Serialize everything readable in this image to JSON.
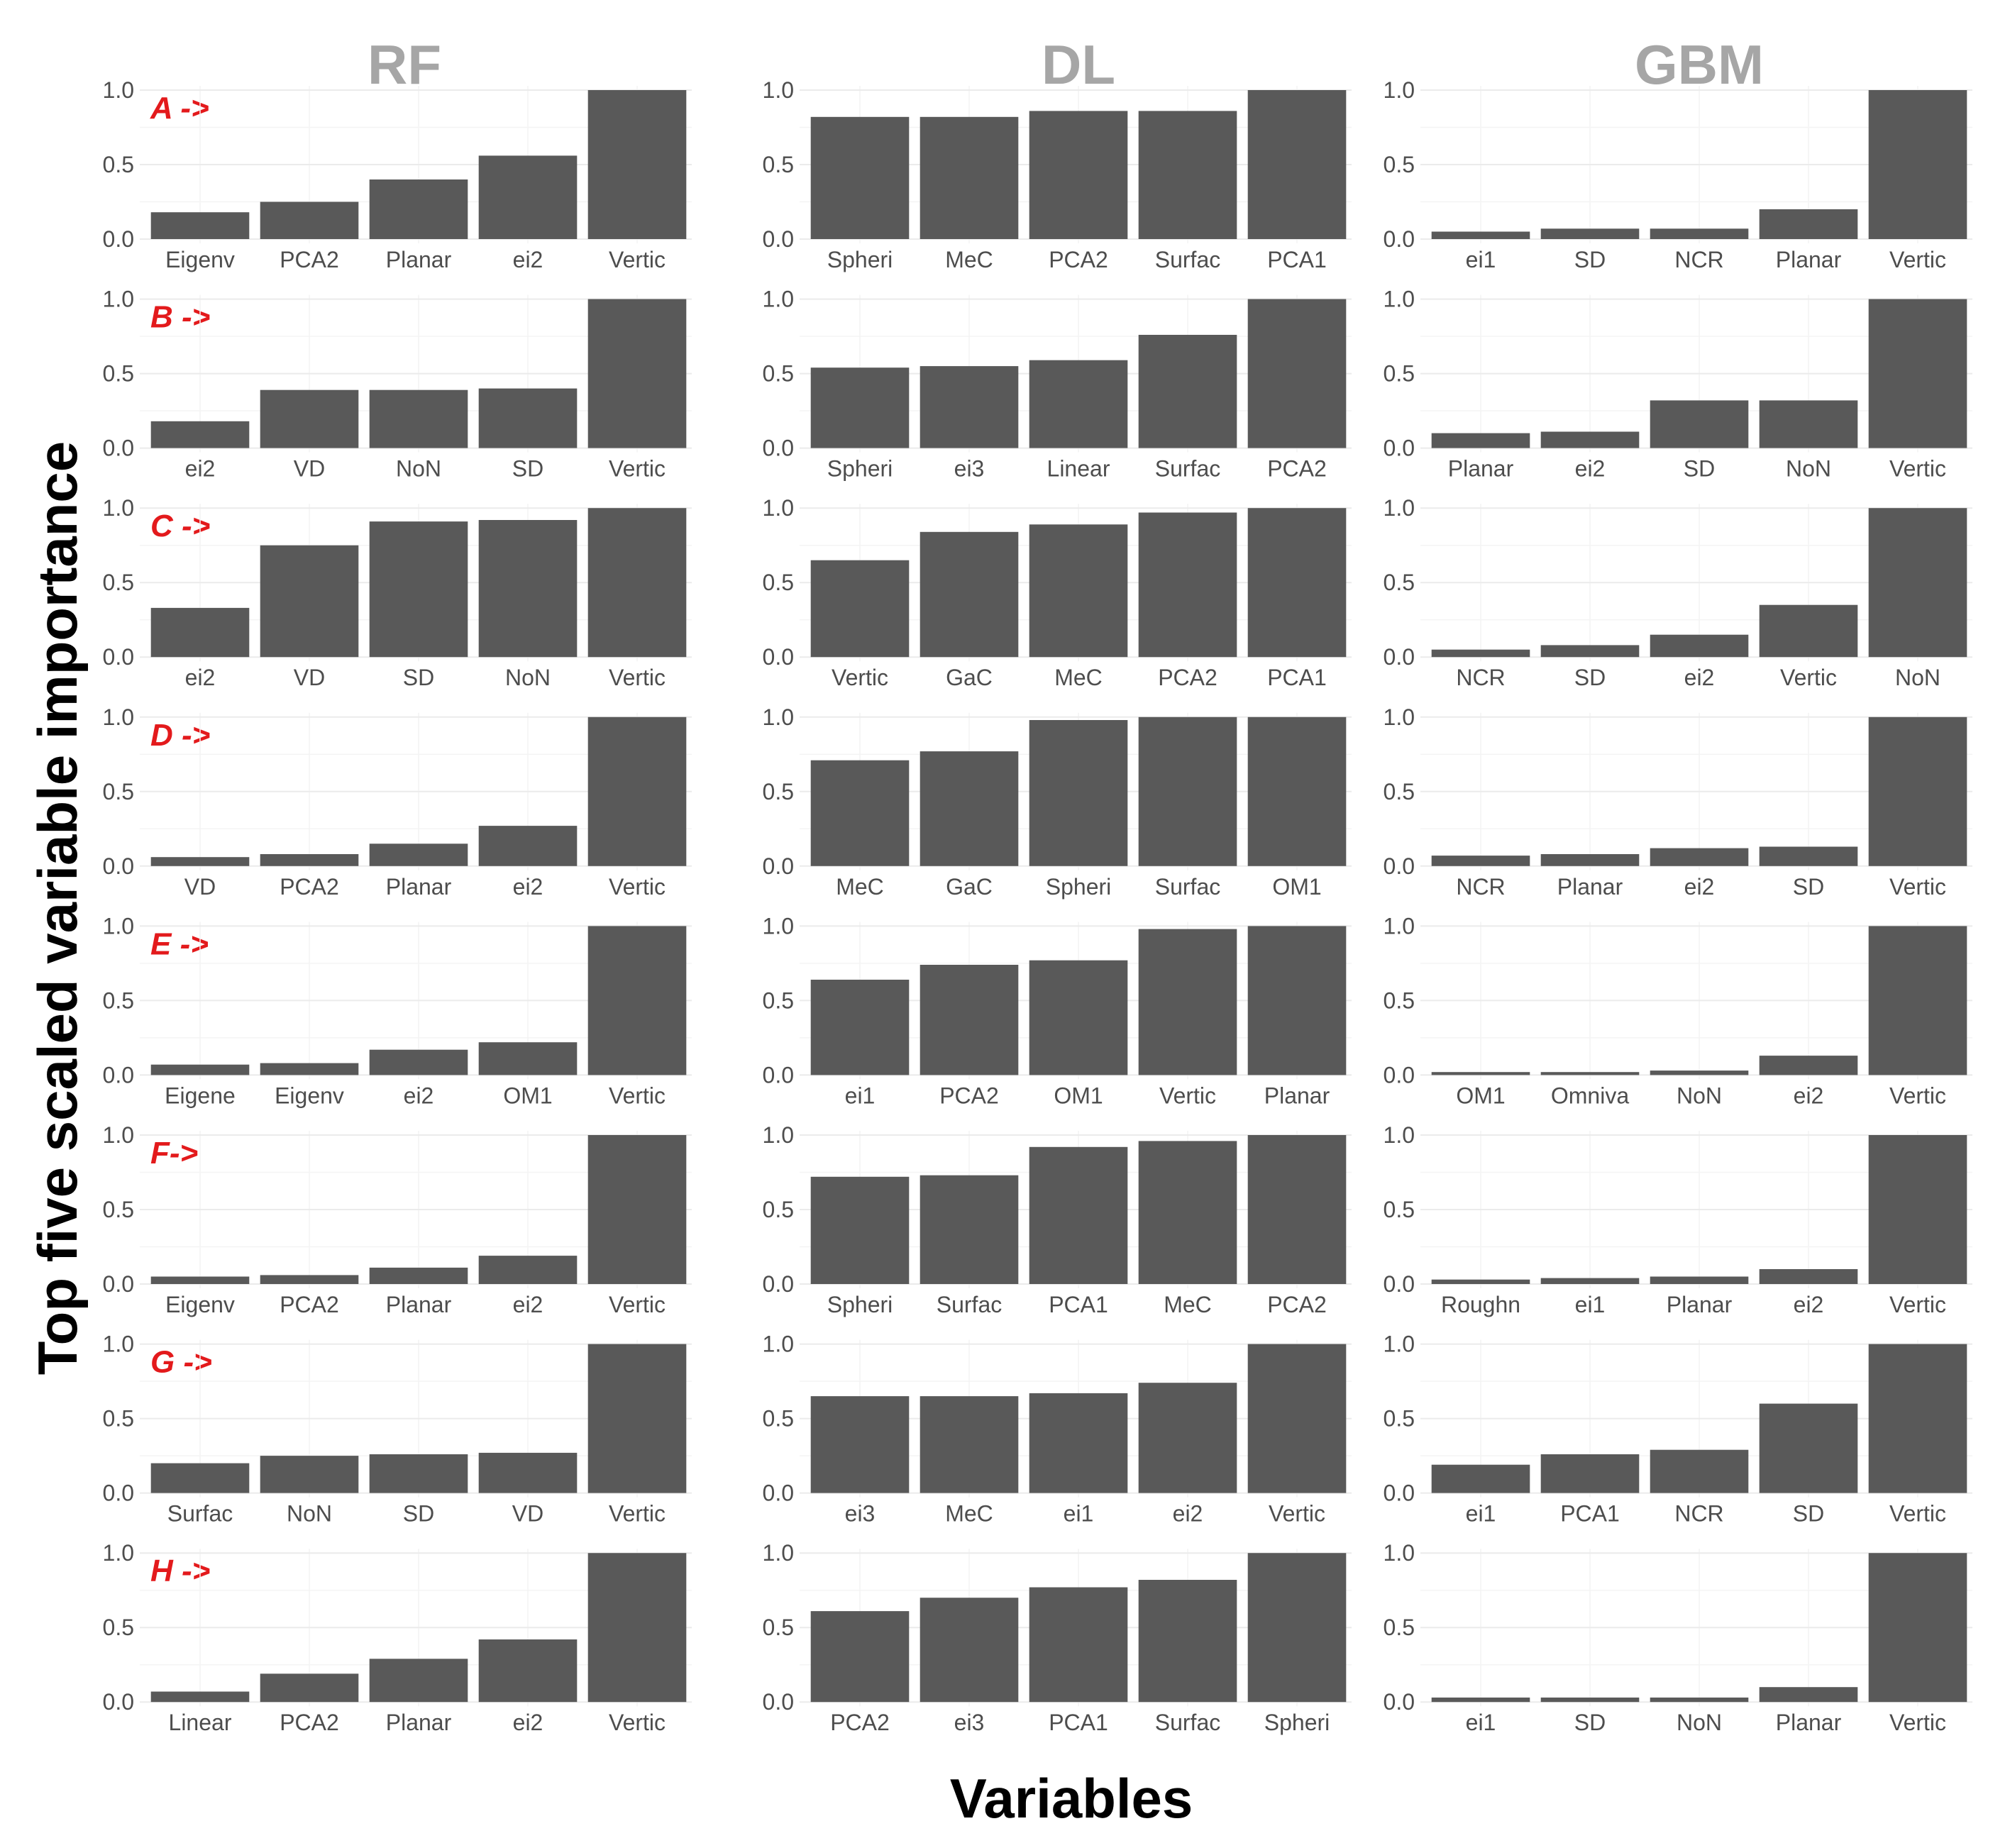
{
  "chart_data": {
    "type": "bar",
    "ylabel": "Top five scaled variable importance",
    "xlabel": "Variables",
    "ylim": [
      0,
      1
    ],
    "yticks": [
      "0.0",
      "0.5",
      "1.0"
    ],
    "ytick_values": [
      0,
      0.5,
      1.0
    ],
    "bar_color": "#595959",
    "row_label_color": "#e31a1c",
    "column_title_color": "#a6a6a6",
    "columns": [
      "RF",
      "DL",
      "GBM"
    ],
    "rows": [
      {
        "label": "A ->",
        "panels": [
          {
            "model": "RF",
            "categories": [
              "Eigenv",
              "PCA2",
              "Planar",
              "ei2",
              "Vertic"
            ],
            "values": [
              0.18,
              0.25,
              0.4,
              0.56,
              1.0
            ]
          },
          {
            "model": "DL",
            "categories": [
              "Spheri",
              "MeC",
              "PCA2",
              "Surfac",
              "PCA1"
            ],
            "values": [
              0.82,
              0.82,
              0.86,
              0.86,
              1.0
            ]
          },
          {
            "model": "GBM",
            "categories": [
              "ei1",
              "SD",
              "NCR",
              "Planar",
              "Vertic"
            ],
            "values": [
              0.05,
              0.07,
              0.07,
              0.2,
              1.0
            ]
          }
        ]
      },
      {
        "label": "B ->",
        "panels": [
          {
            "model": "RF",
            "categories": [
              "ei2",
              "VD",
              "NoN",
              "SD",
              "Vertic"
            ],
            "values": [
              0.18,
              0.39,
              0.39,
              0.4,
              1.0
            ]
          },
          {
            "model": "DL",
            "categories": [
              "Spheri",
              "ei3",
              "Linear",
              "Surfac",
              "PCA2"
            ],
            "values": [
              0.54,
              0.55,
              0.59,
              0.76,
              1.0
            ]
          },
          {
            "model": "GBM",
            "categories": [
              "Planar",
              "ei2",
              "SD",
              "NoN",
              "Vertic"
            ],
            "values": [
              0.1,
              0.11,
              0.32,
              0.32,
              1.0
            ]
          }
        ]
      },
      {
        "label": "C ->",
        "panels": [
          {
            "model": "RF",
            "categories": [
              "ei2",
              "VD",
              "SD",
              "NoN",
              "Vertic"
            ],
            "values": [
              0.33,
              0.75,
              0.91,
              0.92,
              1.0
            ]
          },
          {
            "model": "DL",
            "categories": [
              "Vertic",
              "GaC",
              "MeC",
              "PCA2",
              "PCA1"
            ],
            "values": [
              0.65,
              0.84,
              0.89,
              0.97,
              1.0
            ]
          },
          {
            "model": "GBM",
            "categories": [
              "NCR",
              "SD",
              "ei2",
              "Vertic",
              "NoN"
            ],
            "values": [
              0.05,
              0.08,
              0.15,
              0.35,
              1.0
            ]
          }
        ]
      },
      {
        "label": "D ->",
        "panels": [
          {
            "model": "RF",
            "categories": [
              "VD",
              "PCA2",
              "Planar",
              "ei2",
              "Vertic"
            ],
            "values": [
              0.06,
              0.08,
              0.15,
              0.27,
              1.0
            ]
          },
          {
            "model": "DL",
            "categories": [
              "MeC",
              "GaC",
              "Spheri",
              "Surfac",
              "OM1"
            ],
            "values": [
              0.71,
              0.77,
              0.98,
              1.0,
              1.0
            ]
          },
          {
            "model": "GBM",
            "categories": [
              "NCR",
              "Planar",
              "ei2",
              "SD",
              "Vertic"
            ],
            "values": [
              0.07,
              0.08,
              0.12,
              0.13,
              1.0
            ]
          }
        ]
      },
      {
        "label": "E ->",
        "panels": [
          {
            "model": "RF",
            "categories": [
              "Eigene",
              "Eigenv",
              "ei2",
              "OM1",
              "Vertic"
            ],
            "values": [
              0.07,
              0.08,
              0.17,
              0.22,
              1.0
            ]
          },
          {
            "model": "DL",
            "categories": [
              "ei1",
              "PCA2",
              "OM1",
              "Vertic",
              "Planar"
            ],
            "values": [
              0.64,
              0.74,
              0.77,
              0.98,
              1.0
            ]
          },
          {
            "model": "GBM",
            "categories": [
              "OM1",
              "Omniva",
              "NoN",
              "ei2",
              "Vertic"
            ],
            "values": [
              0.02,
              0.02,
              0.03,
              0.13,
              1.0
            ]
          }
        ]
      },
      {
        "label": "F->",
        "panels": [
          {
            "model": "RF",
            "categories": [
              "Eigenv",
              "PCA2",
              "Planar",
              "ei2",
              "Vertic"
            ],
            "values": [
              0.05,
              0.06,
              0.11,
              0.19,
              1.0
            ]
          },
          {
            "model": "DL",
            "categories": [
              "Spheri",
              "Surfac",
              "PCA1",
              "MeC",
              "PCA2"
            ],
            "values": [
              0.72,
              0.73,
              0.92,
              0.96,
              1.0
            ]
          },
          {
            "model": "GBM",
            "categories": [
              "Roughn",
              "ei1",
              "Planar",
              "ei2",
              "Vertic"
            ],
            "values": [
              0.03,
              0.04,
              0.05,
              0.1,
              1.0
            ]
          }
        ]
      },
      {
        "label": "G ->",
        "panels": [
          {
            "model": "RF",
            "categories": [
              "Surfac",
              "NoN",
              "SD",
              "VD",
              "Vertic"
            ],
            "values": [
              0.2,
              0.25,
              0.26,
              0.27,
              1.0
            ]
          },
          {
            "model": "DL",
            "categories": [
              "ei3",
              "MeC",
              "ei1",
              "ei2",
              "Vertic"
            ],
            "values": [
              0.65,
              0.65,
              0.67,
              0.74,
              1.0
            ]
          },
          {
            "model": "GBM",
            "categories": [
              "ei1",
              "PCA1",
              "NCR",
              "SD",
              "Vertic"
            ],
            "values": [
              0.19,
              0.26,
              0.29,
              0.6,
              1.0
            ]
          }
        ]
      },
      {
        "label": "H ->",
        "panels": [
          {
            "model": "RF",
            "categories": [
              "Linear",
              "PCA2",
              "Planar",
              "ei2",
              "Vertic"
            ],
            "values": [
              0.07,
              0.19,
              0.29,
              0.42,
              1.0
            ]
          },
          {
            "model": "DL",
            "categories": [
              "PCA2",
              "ei3",
              "PCA1",
              "Surfac",
              "Spheri"
            ],
            "values": [
              0.61,
              0.7,
              0.77,
              0.82,
              1.0
            ]
          },
          {
            "model": "GBM",
            "categories": [
              "ei1",
              "SD",
              "NoN",
              "Planar",
              "Vertic"
            ],
            "values": [
              0.03,
              0.03,
              0.03,
              0.1,
              1.0
            ]
          }
        ]
      }
    ]
  }
}
